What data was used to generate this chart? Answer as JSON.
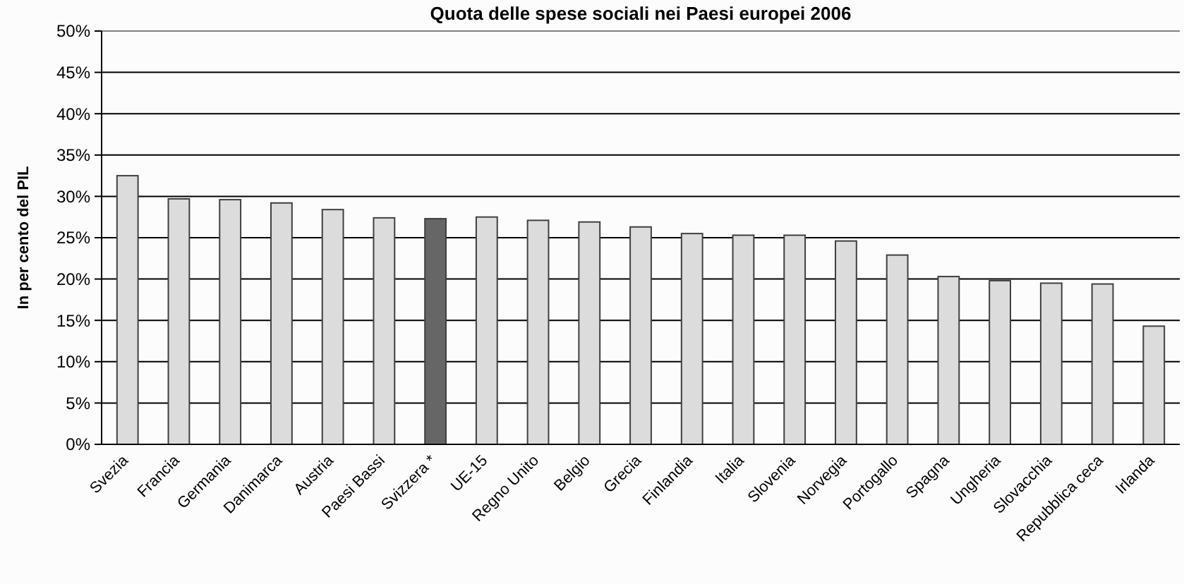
{
  "chart_data": {
    "type": "bar",
    "title": "Quota delle spese sociali nei Paesi europei 2006",
    "ylabel": "In per cento del PIL",
    "categories": [
      "Svezia",
      "Francia",
      "Germania",
      "Danimarca",
      "Austria",
      "Paesi Bassi",
      "Svizzera *",
      "UE-15",
      "Regno Unito",
      "Belgio",
      "Grecia",
      "Finlandia",
      "Italia",
      "Slovenia",
      "Norvegia",
      "Portogallo",
      "Spagna",
      "Ungheria",
      "Slovacchia",
      "Repubblica ceca",
      "Irlanda"
    ],
    "values": [
      32.5,
      29.7,
      29.6,
      29.2,
      28.4,
      27.4,
      27.3,
      27.5,
      27.1,
      26.9,
      26.3,
      25.5,
      25.3,
      25.3,
      24.6,
      22.9,
      20.3,
      19.8,
      19.5,
      19.4,
      14.3
    ],
    "colors": [
      "#dcdcdc",
      "#dcdcdc",
      "#dcdcdc",
      "#dcdcdc",
      "#dcdcdc",
      "#dcdcdc",
      "#666666",
      "#dcdcdc",
      "#dcdcdc",
      "#dcdcdc",
      "#dcdcdc",
      "#dcdcdc",
      "#dcdcdc",
      "#dcdcdc",
      "#dcdcdc",
      "#dcdcdc",
      "#dcdcdc",
      "#dcdcdc",
      "#dcdcdc",
      "#dcdcdc",
      "#dcdcdc"
    ],
    "ylim": [
      0,
      50
    ],
    "yticks": [
      {
        "value": 0,
        "label": "0%"
      },
      {
        "value": 5,
        "label": "5%"
      },
      {
        "value": 10,
        "label": "10%"
      },
      {
        "value": 15,
        "label": "15%"
      },
      {
        "value": 20,
        "label": "20%"
      },
      {
        "value": 25,
        "label": "25%"
      },
      {
        "value": 30,
        "label": "30%"
      },
      {
        "value": 35,
        "label": "35%"
      },
      {
        "value": 40,
        "label": "40%"
      },
      {
        "value": 45,
        "label": "45%"
      },
      {
        "value": 50,
        "label": "50%"
      }
    ],
    "grid": "y"
  }
}
